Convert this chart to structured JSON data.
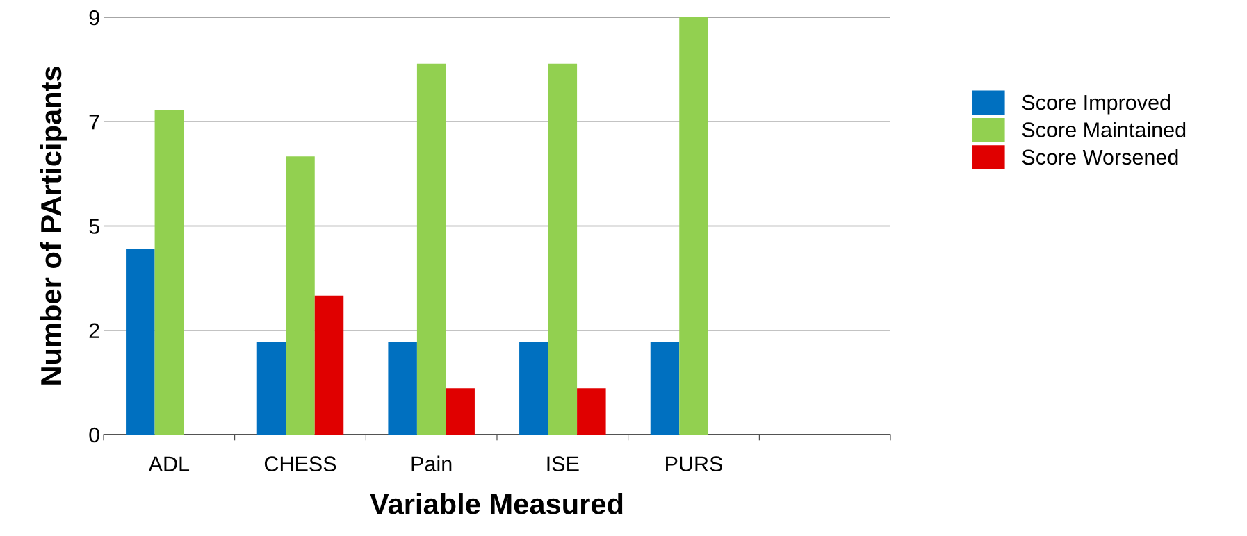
{
  "chart_data": {
    "type": "bar",
    "xlabel": "Variable Measured",
    "ylabel": "Number of PArticipants",
    "categories": [
      "ADL",
      "CHESS",
      "Pain",
      "ISE",
      "PURS",
      null
    ],
    "series": [
      {
        "name": "Score Improved",
        "color": "#0070c0",
        "values": [
          4,
          2,
          2,
          2,
          2,
          null
        ]
      },
      {
        "name": "Score Maintained",
        "color": "#92d050",
        "values": [
          7,
          6,
          8,
          8,
          9,
          null
        ]
      },
      {
        "name": "Score Worsened",
        "color": "#e00000",
        "values": [
          null,
          3,
          1,
          1,
          null,
          null
        ]
      }
    ],
    "ylim": [
      0,
      9
    ],
    "yticks": [
      0,
      {
        "value": 2.25,
        "label": "2"
      },
      {
        "value": 4.5,
        "label": "5"
      },
      {
        "value": 6.75,
        "label": "7"
      },
      9
    ],
    "grid": "y",
    "legend": "right"
  }
}
